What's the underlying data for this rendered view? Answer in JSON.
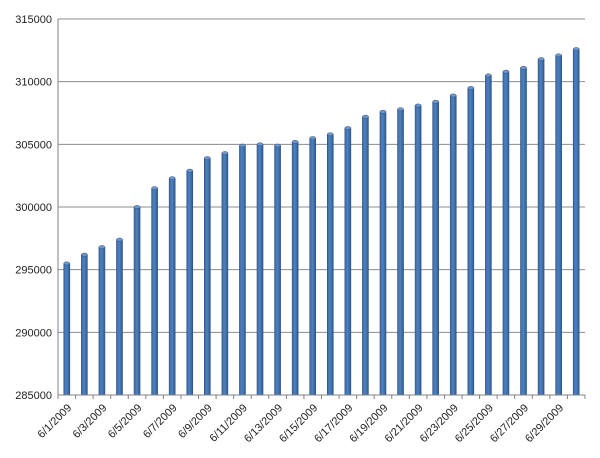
{
  "chart_data": {
    "type": "bar",
    "title": "",
    "xlabel": "",
    "ylabel": "",
    "ylim": [
      285000,
      315000
    ],
    "y_ticks": [
      "285000",
      "290000",
      "295000",
      "300000",
      "305000",
      "310000",
      "315000"
    ],
    "grid": true,
    "legend": "none",
    "bar_color": "#4f81bd",
    "categories": [
      "6/1/2009",
      "6/2/2009",
      "6/3/2009",
      "6/4/2009",
      "6/5/2009",
      "6/6/2009",
      "6/7/2009",
      "6/8/2009",
      "6/9/2009",
      "6/10/2009",
      "6/11/2009",
      "6/12/2009",
      "6/13/2009",
      "6/14/2009",
      "6/15/2009",
      "6/16/2009",
      "6/17/2009",
      "6/18/2009",
      "6/19/2009",
      "6/20/2009",
      "6/21/2009",
      "6/22/2009",
      "6/23/2009",
      "6/24/2009",
      "6/25/2009",
      "6/26/2009",
      "6/27/2009",
      "6/28/2009",
      "6/29/2009",
      "6/30/2009"
    ],
    "x_tick_labels": [
      "6/1/2009",
      "6/3/2009",
      "6/5/2009",
      "6/7/2009",
      "6/9/2009",
      "6/11/2009",
      "6/13/2009",
      "6/15/2009",
      "6/17/2009",
      "6/19/2009",
      "6/21/2009",
      "6/23/2009",
      "6/25/2009",
      "6/27/2009",
      "6/29/2009"
    ],
    "values": [
      295500,
      296200,
      296800,
      297400,
      300000,
      301500,
      302300,
      302900,
      303900,
      304300,
      304900,
      305000,
      304900,
      305200,
      305500,
      305800,
      306300,
      307200,
      307600,
      307800,
      308100,
      308400,
      308900,
      309500,
      310500,
      310800,
      311100,
      311800,
      312100,
      312600
    ]
  }
}
